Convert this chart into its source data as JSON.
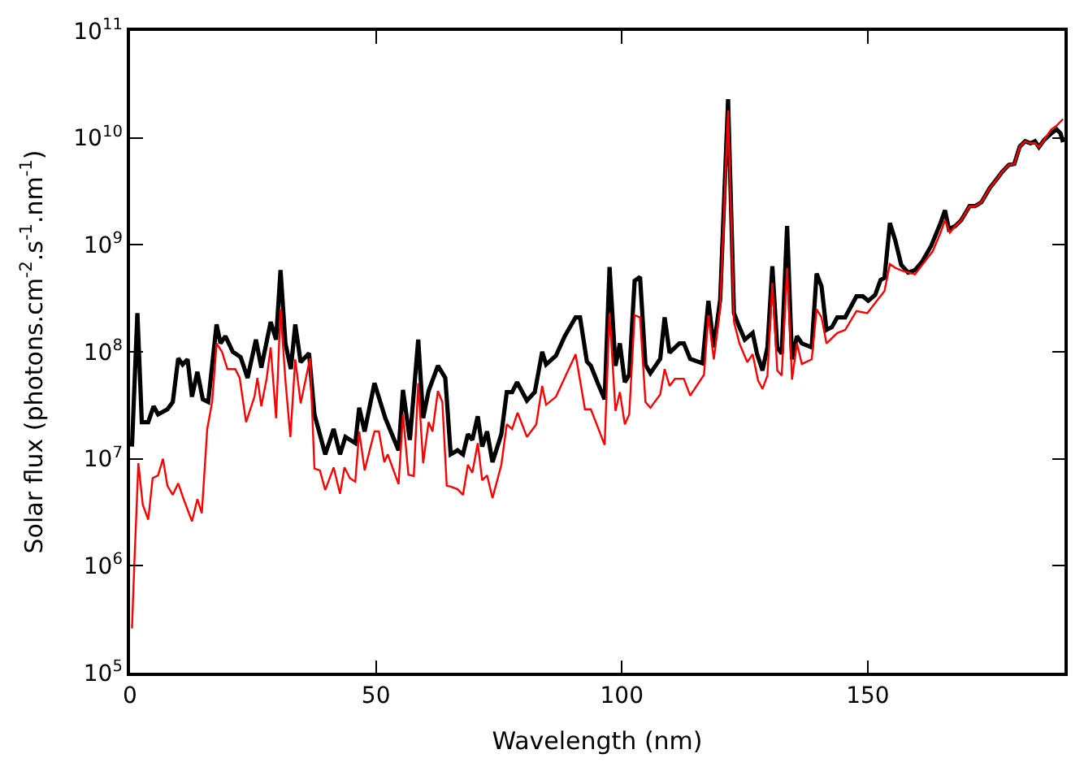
{
  "chart_data": {
    "type": "line",
    "xlabel": "Wavelength (nm)",
    "ylabel": "Solar flux (photons.cm$^{-2}$.s$^{-1}$.nm$^{-1}$)",
    "log": "y",
    "marker": "none",
    "line_style": "solid",
    "xlim": [
      0,
      190
    ],
    "xticks": [
      0,
      50,
      100,
      150
    ],
    "ylim": [
      100000,
      100000000000
    ],
    "yticks": [
      {
        "value": 100000,
        "label": "10$^{5}$"
      },
      {
        "value": 1000000,
        "label": "10$^{6}$"
      },
      {
        "value": 10000000,
        "label": "10$^{7}$"
      },
      {
        "value": 100000000,
        "label": "10$^{8}$"
      },
      {
        "value": 1000000000,
        "label": "10$^{9}$"
      },
      {
        "value": 10000000000,
        "label": "10$^{10}$"
      },
      {
        "value": 100000000000,
        "label": "10$^{11}$"
      }
    ],
    "series": [
      {
        "color": "#000000",
        "x": [
          0.4,
          1.5,
          2.4,
          3.7,
          4.8,
          5.7,
          7.6,
          8.7,
          9.8,
          10.7,
          11.7,
          12.6,
          13.7,
          14.8,
          15.9,
          17.6,
          18.4,
          19.4,
          20.9,
          22.5,
          23.9,
          25.6,
          26.7,
          28.6,
          29.7,
          30.6,
          31.6,
          32.7,
          33.6,
          34.7,
          36.4,
          37.5,
          39.7,
          41.4,
          42.7,
          43.8,
          45.8,
          46.6,
          47.7,
          49.7,
          51.9,
          54.6,
          55.5,
          56.9,
          58.6,
          59.6,
          60.7,
          62.6,
          64.1,
          65.2,
          66.6,
          67.7,
          68.7,
          69.6,
          70.7,
          71.6,
          72.6,
          73.7,
          75.5,
          76.6,
          77.7,
          78.7,
          80.7,
          82.3,
          83.8,
          84.6,
          86.6,
          88.4,
          90.6,
          91.5,
          92.9,
          93.7,
          95.1,
          96.5,
          97.5,
          98.7,
          99.6,
          100.6,
          101.5,
          102.6,
          103.7,
          104.8,
          105.8,
          107.8,
          108.7,
          109.7,
          111.7,
          112.6,
          113.9,
          116.4,
          117.6,
          118.7,
          120.0,
          121.6,
          122.8,
          123.9,
          125.0,
          126.6,
          127.5,
          128.6,
          129.6,
          130.6,
          131.6,
          132.5,
          133.6,
          134.6,
          135.6,
          136.6,
          138.6,
          139.6,
          140.6,
          141.6,
          142.7,
          143.8,
          145.4,
          147.7,
          149.0,
          150.1,
          151.5,
          152.6,
          153.4,
          154.5,
          155.6,
          156.8,
          158.2,
          159.6,
          161.0,
          162.9,
          164.8,
          165.7,
          166.5,
          167.8,
          169.0,
          170.7,
          171.8,
          173.1,
          174.8,
          176.2,
          177.3,
          178.7,
          179.8,
          180.9,
          182.0,
          183.1,
          184.0,
          184.8,
          185.9,
          187.3,
          188.4,
          189.2,
          189.7
        ],
        "values": [
          13000000.0,
          230000000.0,
          22000000.0,
          22000000.0,
          31000000.0,
          26000000.0,
          29000000.0,
          34000000.0,
          87000000.0,
          76000000.0,
          85000000.0,
          38000000.0,
          65000000.0,
          36000000.0,
          34000000.0,
          180000000.0,
          120000000.0,
          140000000.0,
          100000000.0,
          89000000.0,
          57000000.0,
          130000000.0,
          71000000.0,
          190000000.0,
          130000000.0,
          580000000.0,
          120000000.0,
          69000000.0,
          180000000.0,
          80000000.0,
          97000000.0,
          26000000.0,
          11000000.0,
          19000000.0,
          11000000.0,
          16000000.0,
          14000000.0,
          30000000.0,
          18000000.0,
          51000000.0,
          24000000.0,
          12000000.0,
          44000000.0,
          15000000.0,
          130000000.0,
          24000000.0,
          43000000.0,
          74000000.0,
          57000000.0,
          11000000.0,
          12000000.0,
          11000000.0,
          17000000.0,
          15000000.0,
          25000000.0,
          13000000.0,
          18000000.0,
          9300000.0,
          17000000.0,
          42000000.0,
          42000000.0,
          52000000.0,
          35000000.0,
          42000000.0,
          100000000.0,
          76000000.0,
          92000000.0,
          140000000.0,
          210000000.0,
          210000000.0,
          81000000.0,
          74000000.0,
          51000000.0,
          36000000.0,
          620000000.0,
          74000000.0,
          120000000.0,
          52000000.0,
          61000000.0,
          460000000.0,
          500000000.0,
          76000000.0,
          63000000.0,
          86000000.0,
          210000000.0,
          98000000.0,
          120000000.0,
          120000000.0,
          86000000.0,
          78000000.0,
          300000000.0,
          110000000.0,
          310000000.0,
          23000000000.0,
          230000000.0,
          170000000.0,
          130000000.0,
          150000000.0,
          95000000.0,
          67000000.0,
          110000000.0,
          630000000.0,
          110000000.0,
          96000000.0,
          1500000000.0,
          85000000.0,
          140000000.0,
          120000000.0,
          110000000.0,
          540000000.0,
          410000000.0,
          160000000.0,
          170000000.0,
          210000000.0,
          210000000.0,
          330000000.0,
          330000000.0,
          300000000.0,
          340000000.0,
          470000000.0,
          490000000.0,
          1600000000.0,
          1100000000.0,
          650000000.0,
          550000000.0,
          580000000.0,
          690000000.0,
          980000000.0,
          1600000000.0,
          2100000000.0,
          1400000000.0,
          1500000000.0,
          1700000000.0,
          2300000000.0,
          2300000000.0,
          2500000000.0,
          3400000000.0,
          4100000000.0,
          4800000000.0,
          5600000000.0,
          5700000000.0,
          8300000000.0,
          9300000000.0,
          8900000000.0,
          9300000000.0,
          8200000000.0,
          9600000000.0,
          11000000000.0,
          12000000000.0,
          11000000000.0,
          9100000000.0
        ]
      },
      {
        "color": "#ff0000",
        "x": [
          0.4,
          0.9,
          1.7,
          2.6,
          3.7,
          4.6,
          5.7,
          6.7,
          7.6,
          8.7,
          9.8,
          10.9,
          12.6,
          13.7,
          14.6,
          15.7,
          16.7,
          17.6,
          18.7,
          19.8,
          21.4,
          22.3,
          23.6,
          25.3,
          25.9,
          26.7,
          27.8,
          28.6,
          29.7,
          30.6,
          31.6,
          32.6,
          33.6,
          34.7,
          36.6,
          37.5,
          38.6,
          39.7,
          41.4,
          42.7,
          43.6,
          44.7,
          45.8,
          46.6,
          47.7,
          49.7,
          50.6,
          51.7,
          52.4,
          54.6,
          55.5,
          56.6,
          57.7,
          58.6,
          59.6,
          60.7,
          61.5,
          62.6,
          63.5,
          64.4,
          65.2,
          66.6,
          67.7,
          68.7,
          69.6,
          70.7,
          71.6,
          72.6,
          73.7,
          75.5,
          76.6,
          77.7,
          78.8,
          80.7,
          82.6,
          83.8,
          84.6,
          86.6,
          90.6,
          92.5,
          93.7,
          96.5,
          97.5,
          98.7,
          99.6,
          100.6,
          101.5,
          102.6,
          103.7,
          104.8,
          105.8,
          107.8,
          108.7,
          109.7,
          110.8,
          112.6,
          113.9,
          116.7,
          117.6,
          118.7,
          120.0,
          121.6,
          122.8,
          123.9,
          125.5,
          126.6,
          127.7,
          128.6,
          129.6,
          130.6,
          131.6,
          132.5,
          133.6,
          134.6,
          135.6,
          136.6,
          138.6,
          139.6,
          140.6,
          141.6,
          143.8,
          145.4,
          147.7,
          149.9,
          152.1,
          153.4,
          154.5,
          155.6,
          157.1,
          159.6,
          161.5,
          163.2,
          164.8,
          165.7,
          166.7,
          167.8,
          169.0,
          170.7,
          171.8,
          173.1,
          174.8,
          176.2,
          177.3,
          178.7,
          179.8,
          180.9,
          182.0,
          183.1,
          184.0,
          184.8,
          185.9,
          187.3,
          188.4,
          189.7
        ],
        "values": [
          260000.0,
          1100000.0,
          9100000.0,
          3700000.0,
          2700000.0,
          6600000.0,
          7000000.0,
          10000000.0,
          5600000.0,
          4600000.0,
          5900000.0,
          4200000.0,
          2600000.0,
          4200000.0,
          3100000.0,
          19000000.0,
          34000000.0,
          120000000.0,
          100000000.0,
          69000000.0,
          69000000.0,
          57000000.0,
          22000000.0,
          38000000.0,
          57000000.0,
          31000000.0,
          57000000.0,
          110000000.0,
          24000000.0,
          250000000.0,
          54000000.0,
          16000000.0,
          85000000.0,
          33000000.0,
          87000000.0,
          8100000.0,
          7800000.0,
          5100000.0,
          8300000.0,
          4700000.0,
          8300000.0,
          6600000.0,
          6100000.0,
          18000000.0,
          7800000.0,
          18000000.0,
          18000000.0,
          9300000.0,
          11000000.0,
          5800000.0,
          26000000.0,
          7100000.0,
          6900000.0,
          51000000.0,
          9100000.0,
          22000000.0,
          18000000.0,
          43000000.0,
          34000000.0,
          5600000.0,
          5500000.0,
          5200000.0,
          4600000.0,
          8800000.0,
          7400000.0,
          14000000.0,
          6300000.0,
          7000000.0,
          4300000.0,
          8800000.0,
          21000000.0,
          19000000.0,
          27000000.0,
          16000000.0,
          21000000.0,
          48000000.0,
          32000000.0,
          38000000.0,
          95000000.0,
          29000000.0,
          29000000.0,
          13500000.0,
          230000000.0,
          28000000.0,
          42000000.0,
          21000000.0,
          26000000.0,
          220000000.0,
          210000000.0,
          34000000.0,
          30000000.0,
          40000000.0,
          69000000.0,
          48000000.0,
          56000000.0,
          56000000.0,
          39000000.0,
          61000000.0,
          220000000.0,
          85000000.0,
          260000000.0,
          18000000000.0,
          190000000.0,
          120000000.0,
          80000000.0,
          95000000.0,
          54000000.0,
          45000000.0,
          60000000.0,
          440000000.0,
          67000000.0,
          60000000.0,
          610000000.0,
          55000000.0,
          120000000.0,
          77000000.0,
          85000000.0,
          250000000.0,
          210000000.0,
          120000000.0,
          150000000.0,
          160000000.0,
          240000000.0,
          230000000.0,
          310000000.0,
          370000000.0,
          660000000.0,
          610000000.0,
          570000000.0,
          530000000.0,
          690000000.0,
          870000000.0,
          1300000000.0,
          1700000000.0,
          1300000000.0,
          1500000000.0,
          1700000000.0,
          2300000000.0,
          2300000000.0,
          2500000000.0,
          3400000000.0,
          4100000000.0,
          4800000000.0,
          5600000000.0,
          5700000000.0,
          8300000000.0,
          9300000000.0,
          8900000000.0,
          9000000000.0,
          8200000000.0,
          9600000000.0,
          12000000000.0,
          13000000000.0,
          15000000000.0
        ]
      }
    ]
  }
}
